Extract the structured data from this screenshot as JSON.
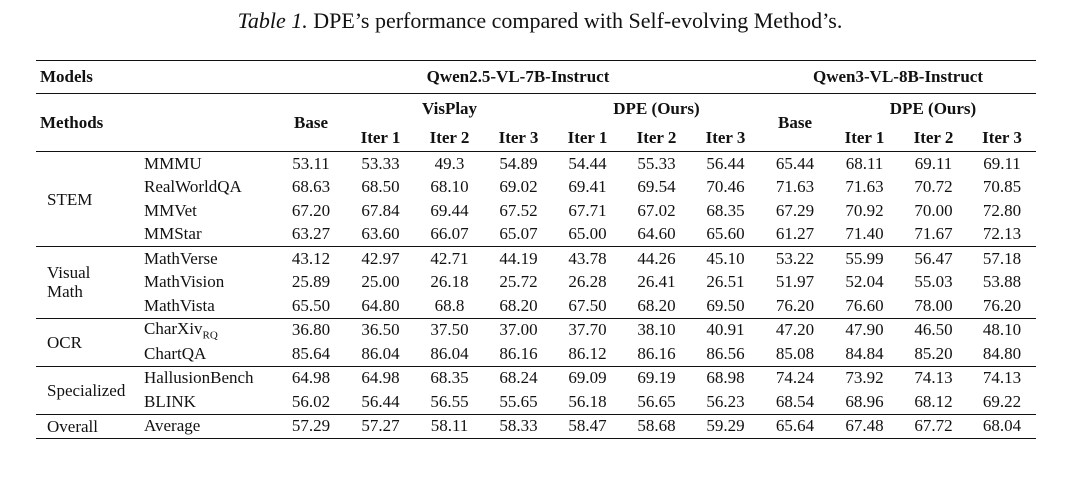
{
  "caption": {
    "label": "Table 1.",
    "text": "DPE’s performance compared with Self-evolving Method’s."
  },
  "header": {
    "models_label": "Models",
    "methods_label": "Methods",
    "model_a": "Qwen2.5-VL-7B-Instruct",
    "model_b": "Qwen3-VL-8B-Instruct",
    "base_label": "Base",
    "visplay_label": "VisPlay",
    "dpe_label": "DPE (Ours)",
    "iter1": "Iter 1",
    "iter2": "Iter 2",
    "iter3": "Iter 3"
  },
  "groups": [
    {
      "label_lines": [
        "STEM"
      ],
      "rows": [
        {
          "bench": "MMMU",
          "sub": "",
          "values": [
            "53.11",
            "53.33",
            "49.3",
            "54.89",
            "54.44",
            "55.33",
            "56.44",
            "65.44",
            "68.11",
            "69.11",
            "69.11"
          ],
          "bold": [
            6,
            10
          ]
        },
        {
          "bench": "RealWorldQA",
          "sub": "",
          "values": [
            "68.63",
            "68.50",
            "68.10",
            "69.02",
            "69.41",
            "69.54",
            "70.46",
            "71.63",
            "71.63",
            "70.72",
            "70.85"
          ],
          "bold": [
            6,
            8
          ]
        },
        {
          "bench": "MMVet",
          "sub": "",
          "values": [
            "67.20",
            "67.84",
            "69.44",
            "67.52",
            "67.71",
            "67.02",
            "68.35",
            "67.29",
            "70.92",
            "70.00",
            "72.80"
          ],
          "bold": [
            2,
            10
          ]
        },
        {
          "bench": "MMStar",
          "sub": "",
          "values": [
            "63.27",
            "63.60",
            "66.07",
            "65.07",
            "65.00",
            "64.60",
            "65.60",
            "61.27",
            "71.40",
            "71.67",
            "72.13"
          ],
          "bold": [
            2,
            10
          ]
        }
      ]
    },
    {
      "label_lines": [
        "Visual",
        "Math"
      ],
      "rows": [
        {
          "bench": "MathVerse",
          "sub": "",
          "values": [
            "43.12",
            "42.97",
            "42.71",
            "44.19",
            "43.78",
            "44.26",
            "45.10",
            "53.22",
            "55.99",
            "56.47",
            "57.18"
          ],
          "bold": [
            6,
            10
          ]
        },
        {
          "bench": "MathVision",
          "sub": "",
          "values": [
            "25.89",
            "25.00",
            "26.18",
            "25.72",
            "26.28",
            "26.41",
            "26.51",
            "51.97",
            "52.04",
            "55.03",
            "53.88"
          ],
          "bold": [
            6,
            9
          ]
        },
        {
          "bench": "MathVista",
          "sub": "",
          "values": [
            "65.50",
            "64.80",
            "68.8",
            "68.20",
            "67.50",
            "68.20",
            "69.50",
            "76.20",
            "76.60",
            "78.00",
            "76.20"
          ],
          "bold": [
            6,
            9
          ]
        }
      ]
    },
    {
      "label_lines": [
        "OCR"
      ],
      "rows": [
        {
          "bench": "CharXiv",
          "sub": "RQ",
          "values": [
            "36.80",
            "36.50",
            "37.50",
            "37.00",
            "37.70",
            "38.10",
            "40.91",
            "47.20",
            "47.90",
            "46.50",
            "48.10"
          ],
          "bold": [
            6,
            10
          ]
        },
        {
          "bench": "ChartQA",
          "sub": "",
          "values": [
            "85.64",
            "86.04",
            "86.04",
            "86.16",
            "86.12",
            "86.16",
            "86.56",
            "85.08",
            "84.84",
            "85.20",
            "84.80"
          ],
          "bold": [
            6,
            9
          ]
        }
      ]
    },
    {
      "label_lines": [
        "Specialized"
      ],
      "rows": [
        {
          "bench": "HallusionBench",
          "sub": "",
          "values": [
            "64.98",
            "64.98",
            "68.35",
            "68.24",
            "69.09",
            "69.19",
            "68.98",
            "74.24",
            "73.92",
            "74.13",
            "74.13"
          ],
          "bold": [
            5,
            7
          ]
        },
        {
          "bench": "BLINK",
          "sub": "",
          "values": [
            "56.02",
            "56.44",
            "56.55",
            "55.65",
            "56.18",
            "56.65",
            "56.23",
            "68.54",
            "68.96",
            "68.12",
            "69.22"
          ],
          "bold": [
            5,
            10
          ]
        }
      ]
    },
    {
      "label_lines": [
        "Overall"
      ],
      "rows": [
        {
          "bench": "Average",
          "sub": "",
          "values": [
            "57.29",
            "57.27",
            "58.11",
            "58.33",
            "58.47",
            "58.68",
            "59.29",
            "65.64",
            "67.48",
            "67.72",
            "68.04"
          ],
          "bold": [
            6,
            10
          ]
        }
      ]
    }
  ]
}
